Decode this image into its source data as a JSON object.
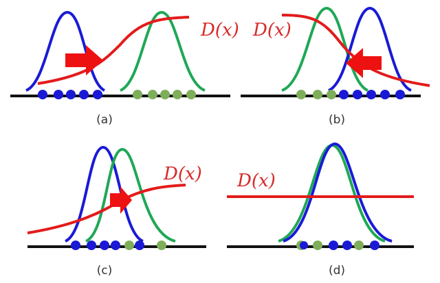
{
  "panels": [
    {
      "label": "(a)",
      "curve_label": "D(x)"
    },
    {
      "label": "(b)",
      "curve_label": "D(x)"
    },
    {
      "label": "(c)",
      "curve_label": "D(x)"
    },
    {
      "label": "(d)",
      "curve_label": "D(x)"
    }
  ]
}
